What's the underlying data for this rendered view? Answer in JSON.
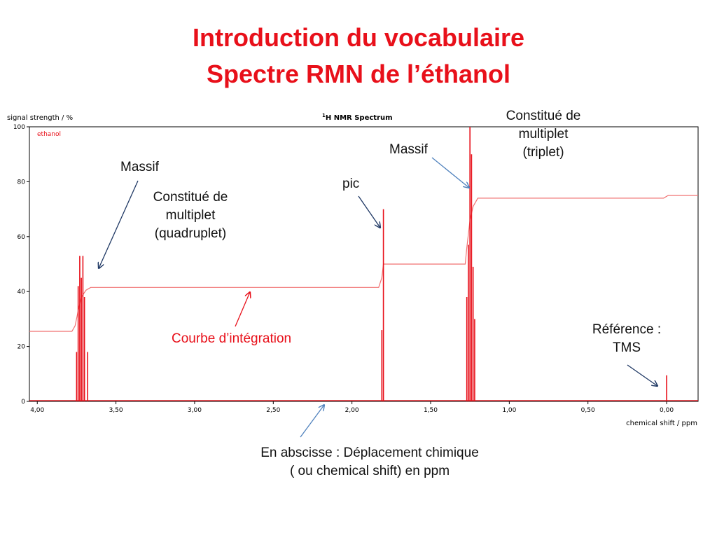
{
  "slide": {
    "title_line1": "Introduction du vocabulaire",
    "title_line2": "Spectre RMN de l’éthanol"
  },
  "annotations": {
    "massif_left": "Massif",
    "quadruplet": [
      "Constitué de",
      "multiplet",
      "(quadruplet)"
    ],
    "pic": "pic",
    "massif_right": "Massif",
    "triplet": [
      "Constitué de",
      "multiplet",
      "(triplet)"
    ],
    "integration": "Courbe d’intégration",
    "reference": [
      "Référence :",
      "TMS"
    ],
    "abscisse": [
      "En abscisse : Déplacement chimique",
      "( ou chemical shift) en ppm"
    ]
  },
  "colors": {
    "title": "#e8101a",
    "spectrum": "#e8101a",
    "integration": "#f07070",
    "arrow_dark": "#1f3864",
    "arrow_blue": "#4f81bd"
  },
  "chart_data": {
    "type": "line",
    "title_sup": "1",
    "title_main": "H NMR Spectrum",
    "ylabel": "signal strength / %",
    "xlabel": "chemical shift / ppm",
    "legend": "ethanol",
    "legend_position": "top-left",
    "x_reversed": true,
    "xlim": [
      4.05,
      -0.2
    ],
    "ylim": [
      0,
      100
    ],
    "x_ticks": [
      4.0,
      3.5,
      3.0,
      2.5,
      2.0,
      1.5,
      1.0,
      0.5,
      0.0
    ],
    "x_tick_labels": [
      "4,00",
      "3,50",
      "3,00",
      "2,50",
      "2,00",
      "1,50",
      "1,00",
      "0,50",
      "0,00"
    ],
    "y_ticks": [
      0,
      20,
      40,
      60,
      80,
      100
    ],
    "y_tick_labels": [
      "0",
      "20",
      "40",
      "60",
      "80",
      "100"
    ],
    "grid": false,
    "peaks": [
      {
        "group": "quadruplet",
        "x": 3.75,
        "y": 18
      },
      {
        "group": "quadruplet",
        "x": 3.74,
        "y": 42
      },
      {
        "group": "quadruplet",
        "x": 3.73,
        "y": 53
      },
      {
        "group": "quadruplet",
        "x": 3.72,
        "y": 45
      },
      {
        "group": "quadruplet",
        "x": 3.71,
        "y": 53
      },
      {
        "group": "quadruplet",
        "x": 3.7,
        "y": 38
      },
      {
        "group": "quadruplet",
        "x": 3.68,
        "y": 18
      },
      {
        "group": "pic",
        "x": 1.81,
        "y": 26
      },
      {
        "group": "pic",
        "x": 1.8,
        "y": 70
      },
      {
        "group": "triplet",
        "x": 1.27,
        "y": 38
      },
      {
        "group": "triplet",
        "x": 1.26,
        "y": 57
      },
      {
        "group": "triplet",
        "x": 1.25,
        "y": 100
      },
      {
        "group": "triplet",
        "x": 1.24,
        "y": 90
      },
      {
        "group": "triplet",
        "x": 1.23,
        "y": 49
      },
      {
        "group": "triplet",
        "x": 1.22,
        "y": 30
      },
      {
        "group": "reference",
        "x": 0.0,
        "y": 9.5
      }
    ],
    "integration_curve": [
      {
        "x": 4.05,
        "y": 25.5
      },
      {
        "x": 3.78,
        "y": 25.5
      },
      {
        "x": 3.76,
        "y": 27.5
      },
      {
        "x": 3.74,
        "y": 33
      },
      {
        "x": 3.72,
        "y": 38
      },
      {
        "x": 3.69,
        "y": 40.5
      },
      {
        "x": 3.66,
        "y": 41.5
      },
      {
        "x": 1.83,
        "y": 41.5
      },
      {
        "x": 1.81,
        "y": 45
      },
      {
        "x": 1.8,
        "y": 50
      },
      {
        "x": 1.28,
        "y": 50
      },
      {
        "x": 1.27,
        "y": 56
      },
      {
        "x": 1.25,
        "y": 66
      },
      {
        "x": 1.23,
        "y": 71
      },
      {
        "x": 1.2,
        "y": 74
      },
      {
        "x": 0.02,
        "y": 74
      },
      {
        "x": -0.01,
        "y": 75
      },
      {
        "x": -0.2,
        "y": 75
      }
    ]
  }
}
